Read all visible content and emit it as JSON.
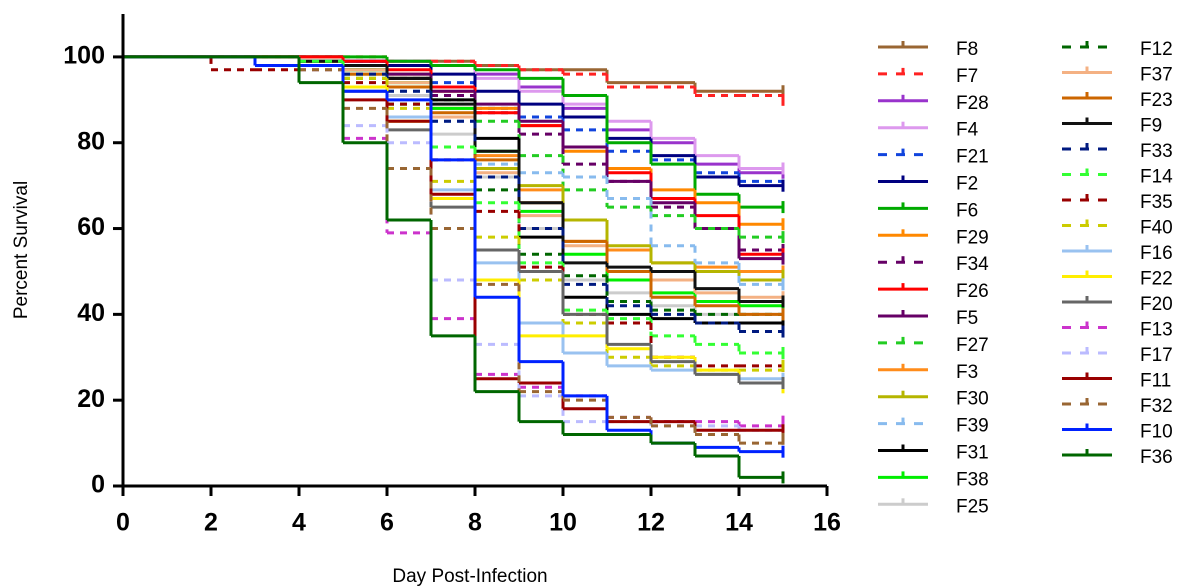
{
  "chart_data": {
    "type": "step",
    "x_label": "Day Post-Infection",
    "y_label": "Percent Survival",
    "x": [
      0,
      1,
      2,
      3,
      4,
      5,
      6,
      7,
      8,
      9,
      10,
      11,
      12,
      13,
      14,
      15
    ],
    "xlim": [
      0,
      16
    ],
    "xticks": [
      0,
      2,
      4,
      6,
      8,
      10,
      12,
      14,
      16
    ],
    "ylim": [
      0,
      110
    ],
    "yticks": [
      0,
      20,
      40,
      60,
      80,
      100
    ],
    "series": [
      {
        "name": "F8",
        "color": "#996633",
        "dashed": false,
        "values": [
          100,
          100,
          100,
          100,
          99,
          99,
          99,
          99,
          98,
          97,
          97,
          94,
          94,
          92,
          92,
          92
        ]
      },
      {
        "name": "F7",
        "color": "#ff2222",
        "dashed": true,
        "values": [
          100,
          100,
          100,
          100,
          100,
          100,
          99,
          99,
          98,
          97,
          96,
          93,
          93,
          91,
          91,
          90
        ]
      },
      {
        "name": "F28",
        "color": "#9933cc",
        "dashed": false,
        "values": [
          100,
          100,
          100,
          100,
          100,
          99,
          99,
          98,
          96,
          93,
          88,
          83,
          80,
          75,
          73,
          73
        ]
      },
      {
        "name": "F4",
        "color": "#dd99ee",
        "dashed": false,
        "values": [
          100,
          100,
          100,
          100,
          100,
          99,
          98,
          98,
          95,
          92,
          89,
          85,
          81,
          77,
          74,
          74
        ]
      },
      {
        "name": "F21",
        "color": "#1144dd",
        "dashed": true,
        "values": [
          100,
          100,
          100,
          100,
          100,
          99,
          98,
          94,
          88,
          86,
          83,
          78,
          76,
          73,
          71,
          70
        ]
      },
      {
        "name": "F2",
        "color": "#000080",
        "dashed": false,
        "values": [
          100,
          100,
          100,
          100,
          100,
          99,
          98,
          96,
          92,
          89,
          86,
          81,
          77,
          72,
          70,
          70
        ]
      },
      {
        "name": "F6",
        "color": "#00aa00",
        "dashed": false,
        "values": [
          100,
          100,
          100,
          100,
          100,
          100,
          99,
          98,
          97,
          95,
          91,
          80,
          75,
          68,
          65,
          65
        ]
      },
      {
        "name": "F29",
        "color": "#ff8800",
        "dashed": false,
        "values": [
          100,
          100,
          100,
          100,
          100,
          98,
          96,
          92,
          88,
          84,
          78,
          74,
          69,
          66,
          61,
          61
        ]
      },
      {
        "name": "F34",
        "color": "#660066",
        "dashed": true,
        "values": [
          100,
          100,
          100,
          100,
          99,
          97,
          95,
          91,
          87,
          82,
          75,
          71,
          65,
          60,
          55,
          55
        ]
      },
      {
        "name": "F26",
        "color": "#ff0000",
        "dashed": false,
        "values": [
          100,
          100,
          100,
          100,
          100,
          99,
          97,
          93,
          87,
          84,
          79,
          73,
          67,
          63,
          54,
          54
        ]
      },
      {
        "name": "F5",
        "color": "#660066",
        "dashed": false,
        "values": [
          100,
          100,
          100,
          100,
          99,
          98,
          96,
          92,
          89,
          85,
          79,
          71,
          66,
          60,
          53,
          53
        ]
      },
      {
        "name": "F27",
        "color": "#22cc22",
        "dashed": true,
        "values": [
          100,
          100,
          100,
          100,
          99,
          97,
          93,
          90,
          85,
          77,
          69,
          65,
          63,
          60,
          58,
          58
        ]
      },
      {
        "name": "F3",
        "color": "#ff8c1a",
        "dashed": false,
        "values": [
          100,
          100,
          100,
          100,
          99,
          97,
          95,
          88,
          77,
          69,
          57,
          55,
          52,
          51,
          50,
          50
        ]
      },
      {
        "name": "F30",
        "color": "#b5b500",
        "dashed": false,
        "values": [
          100,
          100,
          100,
          100,
          99,
          96,
          93,
          86,
          74,
          70,
          62,
          56,
          52,
          50,
          48,
          49
        ]
      },
      {
        "name": "F39",
        "color": "#88bbee",
        "dashed": true,
        "values": [
          100,
          100,
          100,
          100,
          99,
          96,
          92,
          85,
          75,
          73,
          72,
          67,
          56,
          52,
          47,
          47
        ]
      },
      {
        "name": "F31",
        "color": "#000000",
        "dashed": false,
        "values": [
          100,
          100,
          100,
          100,
          99,
          97,
          95,
          90,
          81,
          58,
          44,
          40,
          39,
          38,
          38,
          38
        ]
      },
      {
        "name": "F38",
        "color": "#00ee00",
        "dashed": false,
        "values": [
          100,
          100,
          100,
          100,
          99,
          97,
          94,
          88,
          78,
          64,
          54,
          48,
          45,
          43,
          42,
          42
        ]
      },
      {
        "name": "F25",
        "color": "#cccccc",
        "dashed": false,
        "values": [
          100,
          100,
          100,
          100,
          99,
          96,
          91,
          82,
          72,
          60,
          48,
          45,
          42,
          40,
          40,
          40
        ]
      },
      {
        "name": "F12",
        "color": "#006600",
        "dashed": true,
        "values": [
          100,
          100,
          100,
          100,
          98,
          95,
          89,
          79,
          69,
          54,
          49,
          43,
          41,
          40,
          40,
          40
        ]
      },
      {
        "name": "F37",
        "color": "#f4b183",
        "dashed": false,
        "values": [
          100,
          100,
          100,
          100,
          99,
          97,
          94,
          86,
          73,
          63,
          56,
          50,
          48,
          45,
          44,
          44
        ]
      },
      {
        "name": "F23",
        "color": "#cc6600",
        "dashed": false,
        "values": [
          100,
          100,
          100,
          100,
          99,
          96,
          93,
          87,
          76,
          66,
          57,
          50,
          44,
          42,
          40,
          40
        ]
      },
      {
        "name": "F9",
        "color": "#111111",
        "dashed": false,
        "values": [
          100,
          100,
          100,
          100,
          99,
          98,
          95,
          89,
          78,
          66,
          52,
          51,
          50,
          46,
          43,
          43
        ]
      },
      {
        "name": "F33",
        "color": "#001a80",
        "dashed": true,
        "values": [
          100,
          100,
          100,
          100,
          99,
          96,
          92,
          85,
          72,
          60,
          47,
          42,
          40,
          38,
          36,
          36
        ]
      },
      {
        "name": "F14",
        "color": "#33ff33",
        "dashed": true,
        "values": [
          100,
          100,
          100,
          100,
          99,
          95,
          89,
          79,
          66,
          52,
          41,
          39,
          35,
          33,
          31,
          31
        ]
      },
      {
        "name": "F35",
        "color": "#990000",
        "dashed": true,
        "values": [
          100,
          100,
          97,
          97,
          97,
          94,
          89,
          76,
          64,
          51,
          40,
          38,
          30,
          28,
          28,
          28
        ]
      },
      {
        "name": "F40",
        "color": "#cccc00",
        "dashed": true,
        "values": [
          100,
          100,
          100,
          100,
          98,
          95,
          88,
          71,
          58,
          48,
          38,
          30,
          28,
          27,
          27,
          28
        ]
      },
      {
        "name": "F16",
        "color": "#99c2f0",
        "dashed": false,
        "values": [
          100,
          100,
          100,
          100,
          98,
          93,
          86,
          69,
          52,
          38,
          31,
          28,
          27,
          26,
          25,
          25
        ]
      },
      {
        "name": "F22",
        "color": "#ffee00",
        "dashed": false,
        "values": [
          100,
          100,
          100,
          100,
          98,
          93,
          85,
          67,
          48,
          35,
          35,
          32,
          30,
          27,
          24,
          23
        ]
      },
      {
        "name": "F20",
        "color": "#666666",
        "dashed": false,
        "values": [
          100,
          100,
          100,
          100,
          98,
          92,
          83,
          65,
          55,
          50,
          40,
          33,
          29,
          26,
          24,
          24
        ]
      },
      {
        "name": "F13",
        "color": "#cc33cc",
        "dashed": true,
        "values": [
          100,
          100,
          100,
          100,
          98,
          81,
          59,
          39,
          26,
          23,
          21,
          16,
          15,
          15,
          14,
          15
        ]
      },
      {
        "name": "F17",
        "color": "#bbbbff",
        "dashed": true,
        "values": [
          100,
          100,
          100,
          100,
          97,
          84,
          80,
          48,
          33,
          21,
          15,
          15,
          14,
          14,
          13,
          13
        ]
      },
      {
        "name": "F11",
        "color": "#990000",
        "dashed": false,
        "values": [
          100,
          100,
          100,
          100,
          98,
          90,
          85,
          68,
          25,
          24,
          18,
          15,
          15,
          13,
          13,
          13
        ]
      },
      {
        "name": "F32",
        "color": "#996633",
        "dashed": true,
        "values": [
          100,
          100,
          100,
          100,
          97,
          88,
          74,
          60,
          47,
          22,
          20,
          16,
          14,
          12,
          10,
          11
        ]
      },
      {
        "name": "F10",
        "color": "#0022ff",
        "dashed": false,
        "values": [
          100,
          100,
          100,
          98,
          98,
          92,
          90,
          76,
          44,
          29,
          21,
          13,
          10,
          9,
          8,
          8
        ]
      },
      {
        "name": "F36",
        "color": "#006600",
        "dashed": false,
        "values": [
          100,
          100,
          100,
          100,
          94,
          80,
          62,
          35,
          22,
          15,
          12,
          12,
          10,
          7,
          2,
          2
        ]
      }
    ]
  }
}
